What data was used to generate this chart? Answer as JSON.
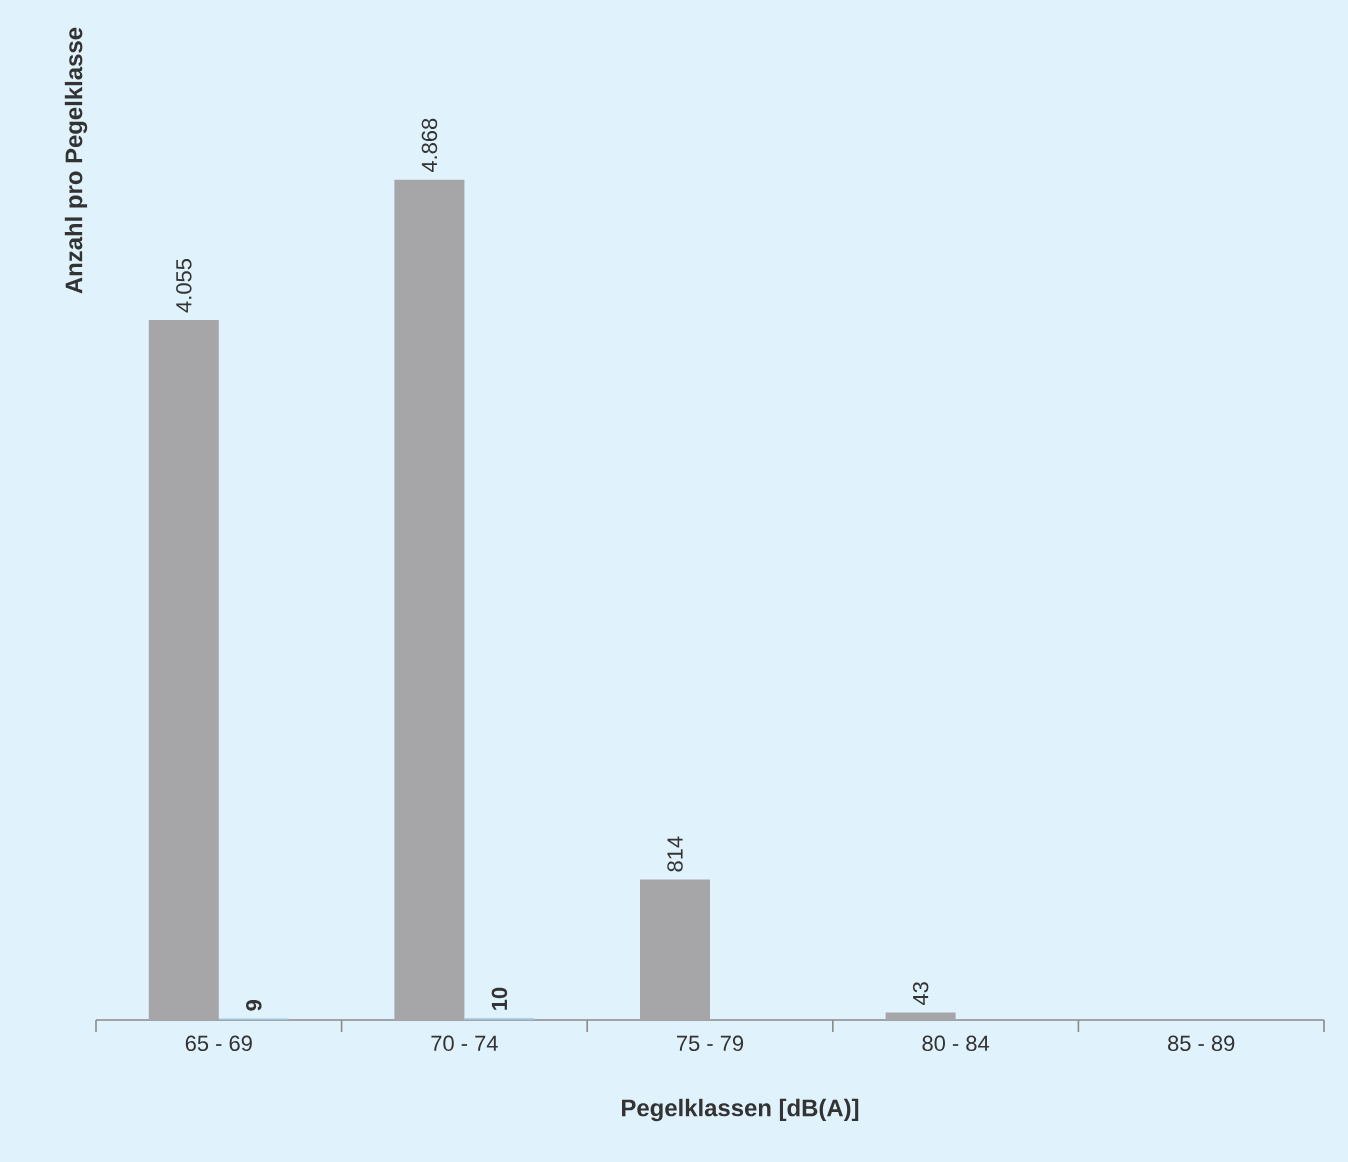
{
  "chart_data": {
    "type": "bar",
    "xlabel": "Pegelklassen [dB(A)]",
    "ylabel": "Anzahl pro Pegelklasse",
    "categories": [
      "65 - 69",
      "70 - 74",
      "75 - 79",
      "80 - 84",
      "85 - 89"
    ],
    "series": [
      {
        "color": "#a6a6a9",
        "values": [
          4055,
          4868,
          814,
          43,
          null
        ],
        "value_labels": [
          "4.055",
          "4.868",
          "814",
          "43",
          null
        ]
      },
      {
        "color": "#9fc4dc",
        "values": [
          9,
          10,
          null,
          null,
          null
        ],
        "value_labels": [
          "9",
          "10",
          null,
          null,
          null
        ]
      }
    ],
    "tick_labels": "x"
  }
}
